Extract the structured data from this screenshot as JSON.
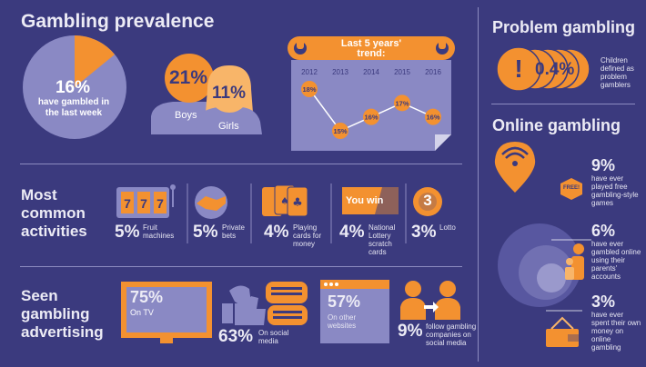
{
  "colors": {
    "bg": "#3b3a7e",
    "orange": "#f39130",
    "lavender": "#8a89c4",
    "light": "#ecebf5"
  },
  "prevalence": {
    "title": "Gambling prevalence",
    "pie_value": "16%",
    "pie_caption": "have gambled in the last week",
    "boys_pct": "21%",
    "boys_label": "Boys",
    "girls_pct": "11%",
    "girls_label": "Girls"
  },
  "trend": {
    "title": "Last 5 years' trend:",
    "years": [
      "2012",
      "2013",
      "2014",
      "2015",
      "2016"
    ],
    "labels": [
      "18%",
      "15%",
      "16%",
      "17%",
      "16%"
    ]
  },
  "chart_data": {
    "type": "line",
    "title": "Last 5 years' trend:",
    "x": [
      "2012",
      "2013",
      "2014",
      "2015",
      "2016"
    ],
    "series": [
      {
        "values": [
          18,
          15,
          16,
          17,
          16
        ]
      }
    ]
  },
  "activities": {
    "title": "Most common activities",
    "items": [
      {
        "pct": "5%",
        "label": "Fruit machines",
        "icon": "fruit-machine-icon"
      },
      {
        "pct": "5%",
        "label": "Private bets",
        "icon": "handshake-icon"
      },
      {
        "pct": "4%",
        "label": "Playing cards for money",
        "icon": "playing-cards-icon"
      },
      {
        "pct": "4%",
        "label": "National Lottery scratch cards",
        "icon": "scratch-card-icon",
        "card_text": "You win"
      },
      {
        "pct": "3%",
        "label": "Lotto",
        "icon": "lotto-ball-icon",
        "ball": "3"
      }
    ]
  },
  "advertising": {
    "title": "Seen gambling advertising",
    "tv_pct": "75%",
    "tv_label": "On TV",
    "social_pct": "63%",
    "social_label": "On social media",
    "web_pct": "57%",
    "web_label": "On other websites",
    "follow_pct": "9%",
    "follow_label": "follow gambling companies on social media"
  },
  "problem": {
    "title": "Problem gambling",
    "pct": "0.4%",
    "label": "Children defined as problem gamblers",
    "mark": "!"
  },
  "online": {
    "title": "Online gambling",
    "free_pct": "9%",
    "free_label": "have ever played free gambling-style games",
    "badge": "FREE!",
    "parents_pct": "6%",
    "parents_label": "have ever gambled online using their parents' accounts",
    "own_pct": "3%",
    "own_label": "have ever spent their own money on online gambling"
  }
}
